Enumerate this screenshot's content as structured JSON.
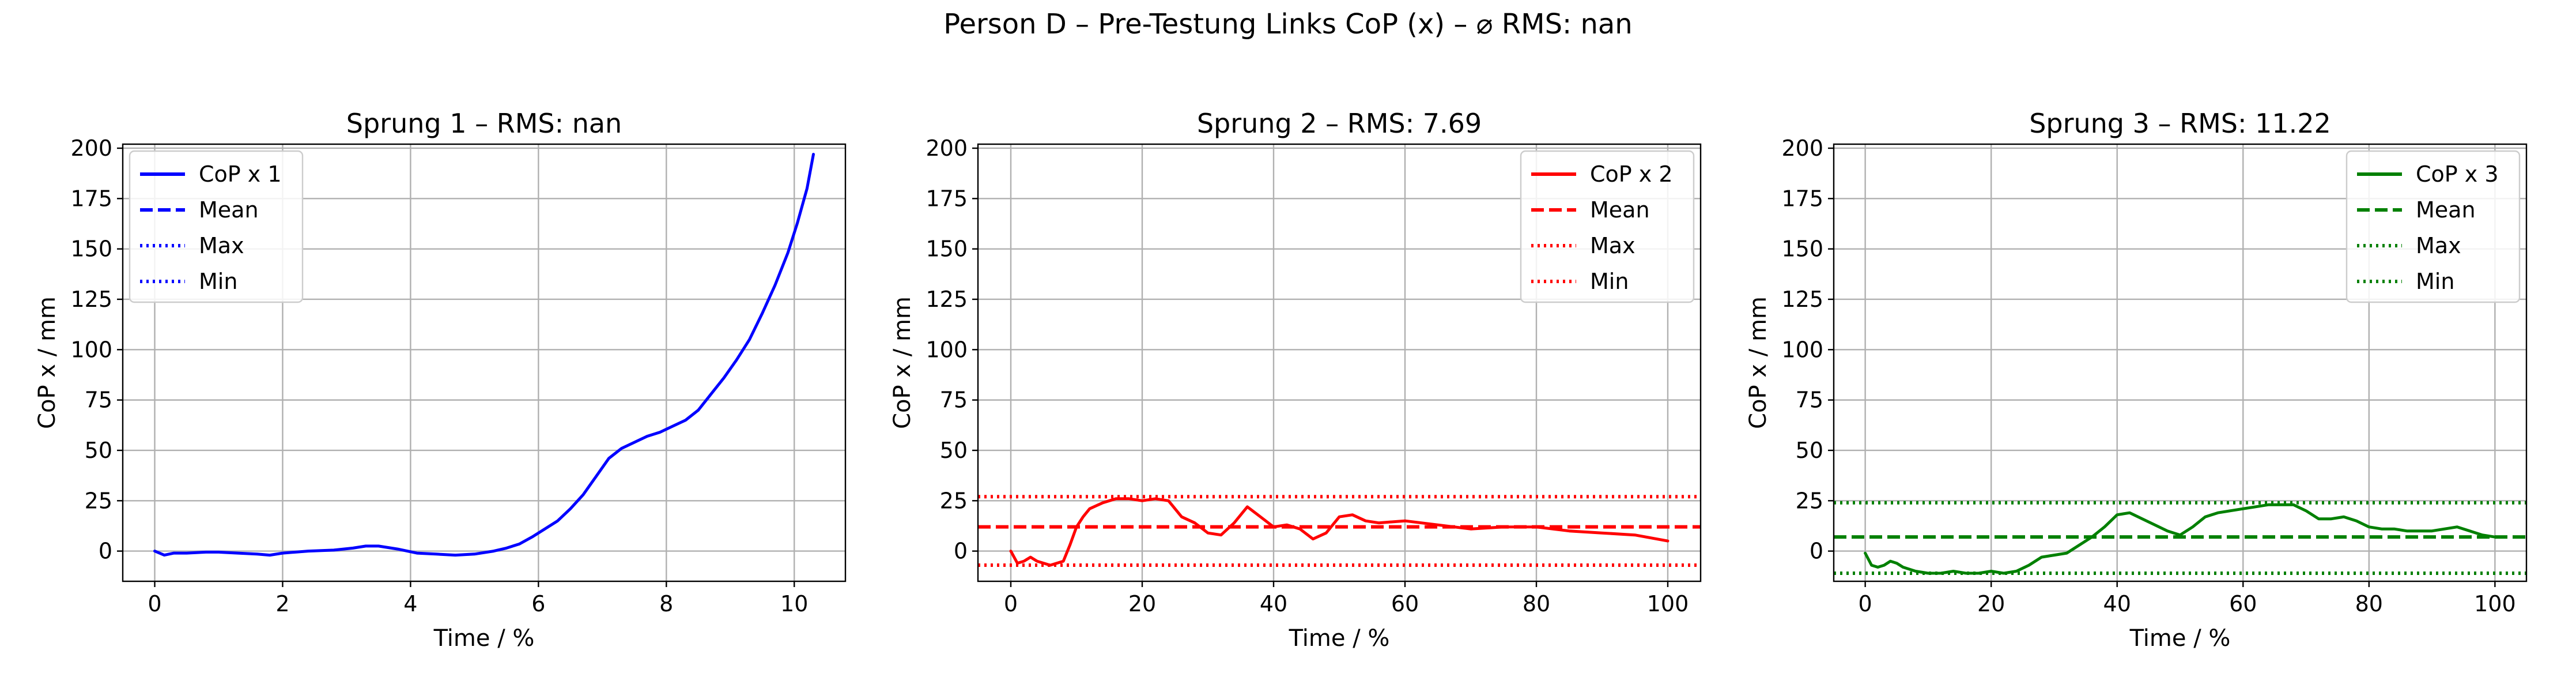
{
  "figure": {
    "suptitle": "Person D – Pre-Testung Links CoP (x) – ⌀ RMS: nan"
  },
  "chart_data": [
    {
      "type": "line",
      "title": "Sprung 1 – RMS: nan",
      "xlabel": "Time / %",
      "ylabel": "CoP x / mm",
      "xlim": [
        -0.5,
        10.8
      ],
      "ylim": [
        -15,
        202
      ],
      "xticks": [
        0,
        2,
        4,
        6,
        8,
        10
      ],
      "yticks": [
        0,
        25,
        50,
        75,
        100,
        125,
        150,
        175,
        200
      ],
      "grid": true,
      "legend_position": "upper-left",
      "color": "#0000ff",
      "legend": [
        {
          "label": "CoP x 1",
          "style": "solid"
        },
        {
          "label": "Mean",
          "style": "dashed"
        },
        {
          "label": "Max",
          "style": "dotted"
        },
        {
          "label": "Min",
          "style": "dotted"
        }
      ],
      "series": [
        {
          "x": [
            0,
            0.15,
            0.3,
            0.5,
            0.8,
            1.0,
            1.3,
            1.6,
            1.8,
            2.0,
            2.4,
            2.8,
            3.1,
            3.3,
            3.5,
            3.8,
            4.1,
            4.4,
            4.7,
            5.0,
            5.3,
            5.5,
            5.7,
            5.9,
            6.1,
            6.3,
            6.5,
            6.7,
            6.9,
            7.1,
            7.3,
            7.5,
            7.7,
            7.9,
            8.1,
            8.3,
            8.5,
            8.7,
            8.9,
            9.1,
            9.3,
            9.5,
            9.7,
            9.9,
            10.05,
            10.2,
            10.3
          ],
          "y": [
            0,
            -2,
            -1,
            -1,
            -0.5,
            -0.5,
            -1,
            -1.5,
            -2,
            -1,
            0,
            0.5,
            1.5,
            2.5,
            2.5,
            1,
            -1,
            -1.5,
            -2,
            -1.5,
            0,
            1.5,
            3.5,
            7,
            11,
            15,
            21,
            28,
            37,
            46,
            51,
            54,
            57,
            59,
            62,
            65,
            70,
            78,
            86,
            95,
            105,
            118,
            132,
            148,
            163,
            180,
            197
          ]
        }
      ]
    },
    {
      "type": "line",
      "title": "Sprung 2 – RMS: 7.69",
      "xlabel": "Time / %",
      "ylabel": "CoP x / mm",
      "xlim": [
        -5,
        105
      ],
      "ylim": [
        -15,
        202
      ],
      "xticks": [
        0,
        20,
        40,
        60,
        80,
        100
      ],
      "yticks": [
        0,
        25,
        50,
        75,
        100,
        125,
        150,
        175,
        200
      ],
      "grid": true,
      "legend_position": "upper-right",
      "color": "#ff0000",
      "mean": 12,
      "max": 27,
      "min": -7,
      "legend": [
        {
          "label": "CoP x 2",
          "style": "solid"
        },
        {
          "label": "Mean",
          "style": "dashed"
        },
        {
          "label": "Max",
          "style": "dotted"
        },
        {
          "label": "Min",
          "style": "dotted"
        }
      ],
      "series": [
        {
          "x": [
            0,
            1,
            2,
            3,
            4,
            5,
            6,
            7,
            8,
            9,
            10,
            11,
            12,
            14,
            16,
            18,
            20,
            22,
            24,
            26,
            28,
            30,
            32,
            34,
            36,
            38,
            40,
            42,
            44,
            46,
            48,
            50,
            52,
            54,
            56,
            60,
            65,
            70,
            75,
            80,
            85,
            90,
            95,
            100
          ],
          "y": [
            0,
            -6,
            -5,
            -3,
            -5,
            -6,
            -7,
            -6,
            -5,
            3,
            12,
            17,
            21,
            24,
            26,
            26,
            25,
            26,
            25,
            17,
            14,
            9,
            8,
            14,
            22,
            17,
            12,
            13,
            11,
            6,
            9,
            17,
            18,
            15,
            14,
            15,
            13,
            11,
            12,
            12,
            10,
            9,
            8,
            5
          ]
        }
      ]
    },
    {
      "type": "line",
      "title": "Sprung 3 – RMS: 11.22",
      "xlabel": "Time / %",
      "ylabel": "CoP x / mm",
      "xlim": [
        -5,
        105
      ],
      "ylim": [
        -15,
        202
      ],
      "xticks": [
        0,
        20,
        40,
        60,
        80,
        100
      ],
      "yticks": [
        0,
        25,
        50,
        75,
        100,
        125,
        150,
        175,
        200
      ],
      "grid": true,
      "legend_position": "upper-right",
      "color": "#008000",
      "mean": 7,
      "max": 24,
      "min": -11,
      "legend": [
        {
          "label": "CoP x 3",
          "style": "solid"
        },
        {
          "label": "Mean",
          "style": "dashed"
        },
        {
          "label": "Max",
          "style": "dotted"
        },
        {
          "label": "Min",
          "style": "dotted"
        }
      ],
      "series": [
        {
          "x": [
            0,
            1,
            2,
            3,
            4,
            5,
            6,
            8,
            10,
            12,
            14,
            16,
            18,
            20,
            22,
            24,
            26,
            28,
            30,
            32,
            34,
            36,
            38,
            40,
            42,
            44,
            46,
            48,
            50,
            52,
            54,
            56,
            58,
            60,
            62,
            64,
            66,
            68,
            70,
            72,
            74,
            76,
            78,
            80,
            82,
            84,
            86,
            88,
            90,
            92,
            94,
            96,
            98,
            100
          ],
          "y": [
            -1,
            -7,
            -8,
            -7,
            -5,
            -6,
            -8,
            -10,
            -11,
            -11,
            -10,
            -11,
            -11,
            -10,
            -11,
            -10,
            -7,
            -3,
            -2,
            -1,
            3,
            7,
            12,
            18,
            19,
            16,
            13,
            10,
            8,
            12,
            17,
            19,
            20,
            21,
            22,
            23,
            23,
            23,
            20,
            16,
            16,
            17,
            15,
            12,
            11,
            11,
            10,
            10,
            10,
            11,
            12,
            10,
            8,
            7
          ]
        }
      ]
    }
  ]
}
